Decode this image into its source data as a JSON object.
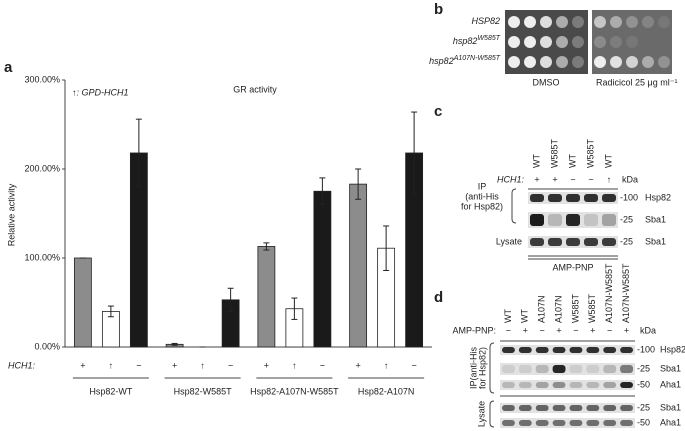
{
  "chart_data": {
    "type": "bar",
    "panel": "a",
    "title": "GR activity",
    "annotation": "↑: GPD-HCH1",
    "ylabel": "Relative activity",
    "row_label": "HCH1:",
    "categories": [
      "Hsp82-WT",
      "Hsp82-W585T",
      "Hsp82-A107N-W585T",
      "Hsp82-A107N"
    ],
    "series": [
      {
        "name": "+",
        "color": "#8c8c8c",
        "values": [
          100,
          3,
          113,
          183
        ],
        "errors": [
          0,
          1,
          4,
          17
        ]
      },
      {
        "name": "↑",
        "color": "#ffffff",
        "values": [
          40,
          0,
          43,
          111
        ],
        "errors": [
          6,
          0,
          12,
          25
        ]
      },
      {
        "name": "−",
        "color": "#1a1a1a",
        "values": [
          218,
          53,
          175,
          218
        ],
        "errors": [
          38,
          13,
          15,
          46
        ]
      }
    ],
    "ylim": [
      0,
      300
    ],
    "yticks": [
      {
        "value": 0,
        "label": "0.00%"
      },
      {
        "value": 100,
        "label": "100.00%"
      },
      {
        "value": 200,
        "label": "200.00%"
      },
      {
        "value": 300,
        "label": "300.00%"
      }
    ]
  },
  "panel_b": {
    "letter": "b",
    "strains": [
      {
        "name": "HSP82"
      },
      {
        "name": "hsp82",
        "sup": "W585T"
      },
      {
        "name": "hsp82",
        "sup": "A107N-W585T"
      }
    ],
    "conditions": [
      "DMSO",
      "Radicicol  25 μg ml⁻¹"
    ]
  },
  "panel_c": {
    "letter": "c",
    "lanes": [
      "WT",
      "W585T",
      "WT",
      "W585T",
      "WT"
    ],
    "row_label": "HCH1:",
    "row": [
      "+",
      "+",
      "−",
      "−",
      "↑"
    ],
    "kda": "kDa",
    "left_labels": [
      "IP",
      "(anti-His",
      "for Hsp82)",
      "Lysate"
    ],
    "markers": [
      "-100",
      "-25",
      "-25"
    ],
    "bands": [
      "Hsp82",
      "Sba1",
      "Sba1"
    ],
    "footer": "AMP-PNP"
  },
  "panel_d": {
    "letter": "d",
    "lanes": [
      "WT",
      "WT",
      "A107N",
      "A107N",
      "W585T",
      "W585T",
      "A107N-W585T",
      "A107N-W585T"
    ],
    "row_label": "AMP-PNP:",
    "row": [
      "−",
      "+",
      "−",
      "+",
      "−",
      "+",
      "−",
      "+"
    ],
    "kda": "kDa",
    "left_labels": [
      "IP(anti-His",
      "for Hsp82)",
      "Lysate"
    ],
    "markers": [
      "-100",
      "-25",
      "-50",
      "-25",
      "-50"
    ],
    "bands": [
      "Hsp82",
      "Sba1",
      "Aha1",
      "Sba1",
      "Aha1"
    ]
  }
}
